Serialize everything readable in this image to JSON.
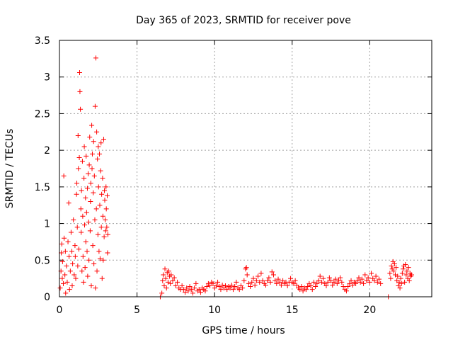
{
  "chart_data": {
    "type": "scatter",
    "title": "Day 365 of 2023, SRMTID for receiver pove",
    "xlabel": "GPS time / hours",
    "ylabel": "SRMTID / TECUs",
    "xlim": [
      0,
      24
    ],
    "ylim": [
      0,
      3.5
    ],
    "xticks": [
      0,
      5,
      10,
      15,
      20
    ],
    "xtick_labels": [
      "0",
      "5",
      "10",
      "15",
      "20"
    ],
    "yticks": [
      0,
      0.5,
      1,
      1.5,
      2,
      2.5,
      3,
      3.5
    ],
    "ytick_labels": [
      "0",
      "0.5",
      "1",
      "1.5",
      "2",
      "2.5",
      "3",
      "3.5"
    ],
    "grid": true,
    "marker": "+",
    "color": "#ff0000",
    "series": [
      {
        "points": [
          [
            0.05,
            0.12
          ],
          [
            0.1,
            0.35
          ],
          [
            0.12,
            0.6
          ],
          [
            0.15,
            0.72
          ],
          [
            0.18,
            0.25
          ],
          [
            0.2,
            0.48
          ],
          [
            0.25,
            0.18
          ],
          [
            0.28,
            1.65
          ],
          [
            0.3,
            0.8
          ],
          [
            0.35,
            0.3
          ],
          [
            0.38,
            0.62
          ],
          [
            0.4,
            0.05
          ],
          [
            0.45,
            0.42
          ],
          [
            0.5,
            0.2
          ],
          [
            0.55,
            0.75
          ],
          [
            0.6,
            1.28
          ],
          [
            0.62,
            0.55
          ],
          [
            0.65,
            0.1
          ],
          [
            0.7,
            0.35
          ],
          [
            0.75,
            0.88
          ],
          [
            0.8,
            0.62
          ],
          [
            0.82,
            0.15
          ],
          [
            0.85,
            0.45
          ],
          [
            0.9,
            1.05
          ],
          [
            0.95,
            0.3
          ],
          [
            1.0,
            0.7
          ],
          [
            1.02,
            0.55
          ],
          [
            1.05,
            0.25
          ],
          [
            1.1,
            1.4
          ],
          [
            1.12,
            1.55
          ],
          [
            1.15,
            0.95
          ],
          [
            1.18,
            0.42
          ],
          [
            1.2,
            2.2
          ],
          [
            1.22,
            1.75
          ],
          [
            1.25,
            0.65
          ],
          [
            1.28,
            1.9
          ],
          [
            1.3,
            3.06
          ],
          [
            1.32,
            2.8
          ],
          [
            1.35,
            2.56
          ],
          [
            1.38,
            1.2
          ],
          [
            1.4,
            0.88
          ],
          [
            1.42,
            1.45
          ],
          [
            1.45,
            0.35
          ],
          [
            1.48,
            1.85
          ],
          [
            1.5,
            1.1
          ],
          [
            1.52,
            0.55
          ],
          [
            1.55,
            0.2
          ],
          [
            1.58,
            1.62
          ],
          [
            1.6,
            2.05
          ],
          [
            1.62,
            0.98
          ],
          [
            1.65,
            0.4
          ],
          [
            1.68,
            1.35
          ],
          [
            1.7,
            0.75
          ],
          [
            1.72,
            1.92
          ],
          [
            1.75,
            1.15
          ],
          [
            1.78,
            0.62
          ],
          [
            1.8,
            1.48
          ],
          [
            1.82,
            0.28
          ],
          [
            1.85,
            1.68
          ],
          [
            1.88,
            1.02
          ],
          [
            1.9,
            0.5
          ],
          [
            1.92,
            1.8
          ],
          [
            1.95,
            2.18
          ],
          [
            1.98,
            0.9
          ],
          [
            2.0,
            1.3
          ],
          [
            2.02,
            1.55
          ],
          [
            2.05,
            0.15
          ],
          [
            2.08,
            2.34
          ],
          [
            2.1,
            1.75
          ],
          [
            2.12,
            1.95
          ],
          [
            2.15,
            0.7
          ],
          [
            2.18,
            1.42
          ],
          [
            2.2,
            2.12
          ],
          [
            2.22,
            0.45
          ],
          [
            2.25,
            1.65
          ],
          [
            2.28,
            1.05
          ],
          [
            2.3,
            2.6
          ],
          [
            2.32,
            0.12
          ],
          [
            2.35,
            3.26
          ],
          [
            2.38,
            1.2
          ],
          [
            2.4,
            2.25
          ],
          [
            2.42,
            0.35
          ],
          [
            2.45,
            1.88
          ],
          [
            2.48,
            0.85
          ],
          [
            2.5,
            2.05
          ],
          [
            2.52,
            1.5
          ],
          [
            2.55,
            0.62
          ],
          [
            2.58,
            1.95
          ],
          [
            2.6,
            1.25
          ],
          [
            2.62,
            0.52
          ],
          [
            2.65,
            1.72
          ],
          [
            2.68,
            2.1
          ],
          [
            2.7,
            0.95
          ],
          [
            2.72,
            1.4
          ],
          [
            2.75,
            0.25
          ],
          [
            2.78,
            1.62
          ],
          [
            2.8,
            1.1
          ],
          [
            2.82,
            0.5
          ],
          [
            2.85,
            2.15
          ],
          [
            2.88,
            0.82
          ],
          [
            2.9,
            1.45
          ],
          [
            2.92,
            1.32
          ],
          [
            2.95,
            1.05
          ],
          [
            2.98,
            0.9
          ],
          [
            3.0,
            1.5
          ],
          [
            3.02,
            1.2
          ],
          [
            3.05,
            0.95
          ],
          [
            3.08,
            1.38
          ],
          [
            3.1,
            0.6
          ],
          [
            3.12,
            0.85
          ]
        ]
      },
      {
        "points": [
          [
            6.5,
            0.0
          ],
          [
            6.6,
            0.05
          ],
          [
            6.65,
            0.22
          ],
          [
            6.7,
            0.3
          ],
          [
            6.75,
            0.15
          ],
          [
            6.8,
            0.38
          ],
          [
            6.85,
            0.25
          ],
          [
            6.9,
            0.12
          ],
          [
            6.95,
            0.33
          ],
          [
            7.0,
            0.2
          ],
          [
            7.05,
            0.35
          ],
          [
            7.1,
            0.28
          ],
          [
            7.15,
            0.18
          ],
          [
            7.2,
            0.3
          ],
          [
            7.3,
            0.22
          ],
          [
            7.4,
            0.26
          ],
          [
            7.5,
            0.15
          ],
          [
            7.6,
            0.2
          ],
          [
            7.7,
            0.12
          ],
          [
            7.8,
            0.1
          ],
          [
            7.9,
            0.15
          ],
          [
            8.0,
            0.1
          ],
          [
            8.1,
            0.06
          ],
          [
            8.2,
            0.12
          ],
          [
            8.3,
            0.08
          ],
          [
            8.4,
            0.14
          ],
          [
            8.5,
            0.1
          ],
          [
            8.6,
            0.05
          ],
          [
            8.7,
            0.12
          ],
          [
            8.8,
            0.18
          ],
          [
            8.9,
            0.08
          ],
          [
            9.0,
            0.1
          ],
          [
            9.1,
            0.06
          ],
          [
            9.2,
            0.12
          ],
          [
            9.3,
            0.1
          ],
          [
            9.4,
            0.08
          ],
          [
            9.5,
            0.14
          ],
          [
            9.6,
            0.18
          ],
          [
            9.7,
            0.15
          ],
          [
            9.8,
            0.2
          ],
          [
            9.9,
            0.18
          ],
          [
            10.0,
            0.12
          ],
          [
            10.1,
            0.15
          ],
          [
            10.2,
            0.2
          ],
          [
            10.3,
            0.14
          ],
          [
            10.4,
            0.1
          ],
          [
            10.5,
            0.16
          ],
          [
            10.6,
            0.12
          ],
          [
            10.7,
            0.15
          ],
          [
            10.8,
            0.1
          ],
          [
            10.9,
            0.14
          ],
          [
            11.0,
            0.12
          ],
          [
            11.1,
            0.16
          ],
          [
            11.2,
            0.1
          ],
          [
            11.3,
            0.14
          ],
          [
            11.4,
            0.2
          ],
          [
            11.5,
            0.12
          ],
          [
            11.6,
            0.1
          ],
          [
            11.7,
            0.15
          ],
          [
            11.8,
            0.12
          ],
          [
            11.9,
            0.22
          ],
          [
            12.0,
            0.38
          ],
          [
            12.05,
            0.4
          ],
          [
            12.1,
            0.3
          ],
          [
            12.2,
            0.18
          ],
          [
            12.3,
            0.14
          ],
          [
            12.4,
            0.2
          ],
          [
            12.5,
            0.25
          ],
          [
            12.6,
            0.16
          ],
          [
            12.7,
            0.22
          ],
          [
            12.8,
            0.28
          ],
          [
            12.9,
            0.2
          ],
          [
            13.0,
            0.32
          ],
          [
            13.1,
            0.22
          ],
          [
            13.2,
            0.18
          ],
          [
            13.3,
            0.16
          ],
          [
            13.4,
            0.22
          ],
          [
            13.5,
            0.26
          ],
          [
            13.6,
            0.2
          ],
          [
            13.7,
            0.34
          ],
          [
            13.8,
            0.3
          ],
          [
            13.9,
            0.22
          ],
          [
            14.0,
            0.18
          ],
          [
            14.1,
            0.24
          ],
          [
            14.2,
            0.2
          ],
          [
            14.3,
            0.16
          ],
          [
            14.4,
            0.22
          ],
          [
            14.5,
            0.18
          ],
          [
            14.6,
            0.2
          ],
          [
            14.7,
            0.15
          ],
          [
            14.8,
            0.2
          ],
          [
            14.9,
            0.25
          ],
          [
            15.0,
            0.2
          ],
          [
            15.1,
            0.18
          ],
          [
            15.2,
            0.22
          ],
          [
            15.3,
            0.16
          ],
          [
            15.4,
            0.12
          ],
          [
            15.5,
            0.1
          ],
          [
            15.6,
            0.14
          ],
          [
            15.7,
            0.08
          ],
          [
            15.8,
            0.12
          ],
          [
            15.9,
            0.1
          ],
          [
            16.0,
            0.14
          ],
          [
            16.1,
            0.18
          ],
          [
            16.2,
            0.15
          ],
          [
            16.3,
            0.1
          ],
          [
            16.4,
            0.2
          ],
          [
            16.5,
            0.14
          ],
          [
            16.6,
            0.18
          ],
          [
            16.7,
            0.22
          ],
          [
            16.8,
            0.28
          ],
          [
            16.9,
            0.2
          ],
          [
            17.0,
            0.25
          ],
          [
            17.1,
            0.18
          ],
          [
            17.2,
            0.15
          ],
          [
            17.3,
            0.2
          ],
          [
            17.4,
            0.26
          ],
          [
            17.5,
            0.22
          ],
          [
            17.6,
            0.16
          ],
          [
            17.7,
            0.2
          ],
          [
            17.8,
            0.24
          ],
          [
            17.9,
            0.18
          ],
          [
            18.0,
            0.22
          ],
          [
            18.1,
            0.26
          ],
          [
            18.2,
            0.2
          ],
          [
            18.3,
            0.14
          ],
          [
            18.4,
            0.1
          ],
          [
            18.5,
            0.08
          ],
          [
            18.6,
            0.14
          ],
          [
            18.7,
            0.18
          ],
          [
            18.8,
            0.22
          ],
          [
            18.9,
            0.16
          ],
          [
            19.0,
            0.2
          ],
          [
            19.1,
            0.18
          ],
          [
            19.2,
            0.22
          ],
          [
            19.3,
            0.26
          ],
          [
            19.4,
            0.2
          ],
          [
            19.5,
            0.24
          ],
          [
            19.6,
            0.18
          ],
          [
            19.7,
            0.3
          ],
          [
            19.8,
            0.22
          ],
          [
            19.9,
            0.26
          ],
          [
            20.0,
            0.2
          ],
          [
            20.1,
            0.32
          ],
          [
            20.2,
            0.25
          ],
          [
            20.3,
            0.22
          ],
          [
            20.4,
            0.28
          ],
          [
            20.5,
            0.2
          ],
          [
            20.6,
            0.24
          ],
          [
            20.7,
            0.18
          ]
        ]
      },
      {
        "points": [
          [
            21.2,
            0.0
          ],
          [
            21.3,
            0.32
          ],
          [
            21.35,
            0.25
          ],
          [
            21.4,
            0.42
          ],
          [
            21.45,
            0.38
          ],
          [
            21.5,
            0.48
          ],
          [
            21.55,
            0.35
          ],
          [
            21.6,
            0.45
          ],
          [
            21.65,
            0.3
          ],
          [
            21.7,
            0.4
          ],
          [
            21.75,
            0.22
          ],
          [
            21.8,
            0.28
          ],
          [
            21.85,
            0.15
          ],
          [
            21.9,
            0.2
          ],
          [
            21.95,
            0.12
          ],
          [
            22.0,
            0.25
          ],
          [
            22.05,
            0.18
          ],
          [
            22.1,
            0.32
          ],
          [
            22.15,
            0.38
          ],
          [
            22.2,
            0.42
          ],
          [
            22.25,
            0.2
          ],
          [
            22.3,
            0.44
          ],
          [
            22.35,
            0.3
          ],
          [
            22.4,
            0.35
          ],
          [
            22.45,
            0.25
          ],
          [
            22.5,
            0.4
          ],
          [
            22.55,
            0.22
          ],
          [
            22.6,
            0.32
          ],
          [
            22.65,
            0.28
          ],
          [
            22.7,
            0.3
          ]
        ]
      }
    ]
  }
}
